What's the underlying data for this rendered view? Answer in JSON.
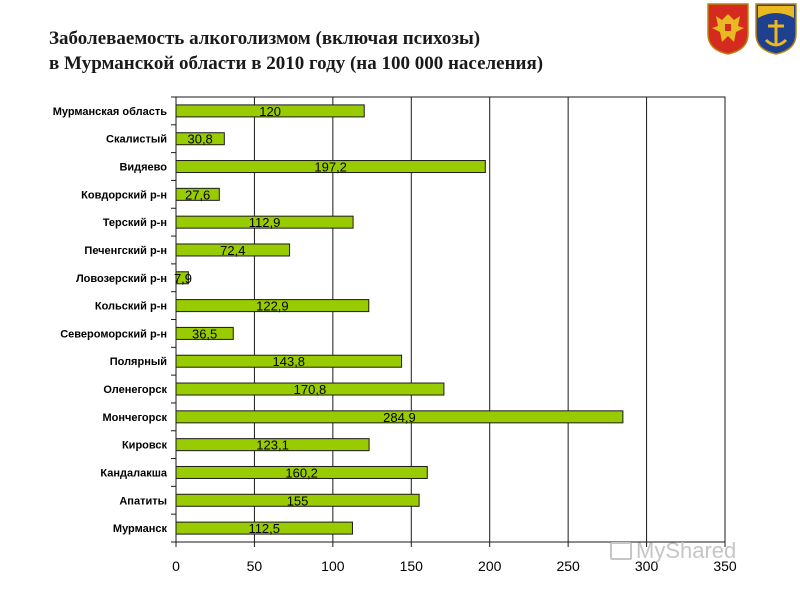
{
  "title_line1": "Заболеваемость алкоголизмом (включая психозы)",
  "title_line2": "в Мурманской области в 2010 году (на 100 000 населения)",
  "watermark": "MyShared",
  "colors": {
    "bar": "#99cc00",
    "bar_stroke": "#1a1a1a",
    "grid": "#1a1a1a"
  },
  "chart_data": {
    "type": "bar",
    "orientation": "horizontal",
    "categories": [
      "Мурманская область",
      "Скалистый",
      "Видяево",
      "Ковдорский р-н",
      "Терский р-н",
      "Печенгский р-н",
      "Ловозерский р-н",
      "Кольский р-н",
      "Североморский р-н",
      "Полярный",
      "Оленегорск",
      "Мончегорск",
      "Кировск",
      "Кандалакша",
      "Апатиты",
      "Мурманск"
    ],
    "values": [
      120,
      30.8,
      197.2,
      27.6,
      112.9,
      72.4,
      7.9,
      122.9,
      36.5,
      143.8,
      170.8,
      284.9,
      123.1,
      160.2,
      155,
      112.5
    ],
    "value_labels": [
      "120",
      "30,8",
      "197,2",
      "27,6",
      "112,9",
      "72,4",
      "7,9",
      "122,9",
      "36,5",
      "143,8",
      "170,8",
      "284,9",
      "123,1",
      "160,2",
      "155",
      "112,5"
    ],
    "xlim": [
      0,
      350
    ],
    "xticks": [
      0,
      50,
      100,
      150,
      200,
      250,
      300,
      350
    ],
    "grid": true
  }
}
